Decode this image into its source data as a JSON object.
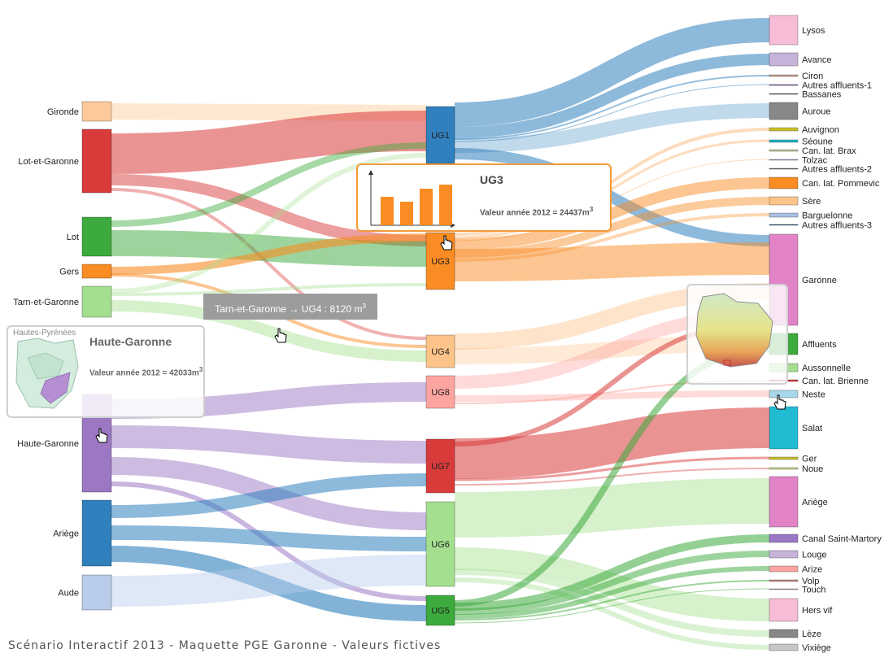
{
  "footer": "Scénario Interactif 2013 - Maquette PGE Garonne - Valeurs fictives",
  "sources": [
    {
      "name": "Gironde",
      "color": "#fdc99a"
    },
    {
      "name": "Lot-et-Garonne",
      "color": "#d93b3b"
    },
    {
      "name": "Lot",
      "color": "#3caa3c"
    },
    {
      "name": "Gers",
      "color": "#f98c23"
    },
    {
      "name": "Tarn-et-Garonne",
      "color": "#a3df8f"
    },
    {
      "name": "Haute-Garonne",
      "color": "#9c78c4"
    },
    {
      "name": "Ariège",
      "color": "#2f80bd"
    },
    {
      "name": "Aude",
      "color": "#b9ccec"
    }
  ],
  "ugs": [
    {
      "name": "UG1",
      "color": "#2f80bd"
    },
    {
      "name": "UG3",
      "color": "#f98c23"
    },
    {
      "name": "UG4",
      "color": "#fdc48a"
    },
    {
      "name": "UG8",
      "color": "#fca5a0"
    },
    {
      "name": "UG7",
      "color": "#d93b3b"
    },
    {
      "name": "UG6",
      "color": "#a3df8f"
    },
    {
      "name": "UG5",
      "color": "#3caa3c"
    }
  ],
  "rivers": [
    {
      "name": "Lysos",
      "color": "#f7bcd6"
    },
    {
      "name": "Avance",
      "color": "#c7b3d9"
    },
    {
      "name": "Ciron",
      "color": "#d5a08f"
    },
    {
      "name": "Autres affluents-1",
      "color": "#7b4d9e"
    },
    {
      "name": "Bassanes",
      "color": "#6b5a52"
    },
    {
      "name": "Auroue",
      "color": "#878787"
    },
    {
      "name": "Auvignon",
      "color": "#c8c228"
    },
    {
      "name": "Séoune",
      "color": "#20b7c8"
    },
    {
      "name": "Can. lat. Brax",
      "color": "#c9c79a"
    },
    {
      "name": "Tolzac",
      "color": "#9db3d6"
    },
    {
      "name": "Autres affluents-2",
      "color": "#6f6f6f"
    },
    {
      "name": "Can. lat. Pommevic",
      "color": "#f98c23"
    },
    {
      "name": "Sère",
      "color": "#fdc48a"
    },
    {
      "name": "Barguelonne",
      "color": "#a9bfe2"
    },
    {
      "name": "Autres affluents-3",
      "color": "#2c5f8f"
    },
    {
      "name": "Garonne",
      "color": "#e283c8"
    },
    {
      "name": "Affluents",
      "color": "#3caa3c"
    },
    {
      "name": "Aussonnelle",
      "color": "#a3df8f"
    },
    {
      "name": "Can. lat. Brienne",
      "color": "#d93b3b"
    },
    {
      "name": "Neste",
      "color": "#a6d8ea"
    },
    {
      "name": "Salat",
      "color": "#21bcd2"
    },
    {
      "name": "Ger",
      "color": "#c8c228"
    },
    {
      "name": "Noue",
      "color": "#c9d88a"
    },
    {
      "name": "Ariège",
      "color": "#e283c8"
    },
    {
      "name": "Canal Saint-Martory",
      "color": "#9c78c4"
    },
    {
      "name": "Louge",
      "color": "#c7b3d9"
    },
    {
      "name": "Arize",
      "color": "#fca5a0"
    },
    {
      "name": "Volp",
      "color": "#c58b7d"
    },
    {
      "name": "Touch",
      "color": "#d9a8c4"
    },
    {
      "name": "Hers vif",
      "color": "#f7bcd6"
    },
    {
      "name": "Lèze",
      "color": "#878787"
    },
    {
      "name": "Vixiège",
      "color": "#c7c7c7"
    }
  ],
  "tooltip_flow": {
    "label": "Tarn-et-Garonne → UG4 : 8120 m",
    "exp": "3"
  },
  "tooltip_ug3": {
    "title": "UG3",
    "value": "Valeur année 2012 = 24437m",
    "exp": "3",
    "bars": [
      0.7,
      0.58,
      0.9,
      1.0
    ]
  },
  "tooltip_hg": {
    "title": "Haute-Garonne",
    "value": "Valeur année 2012 = 42033m",
    "exp": "3",
    "map_label": "Hautes-Pyrénées"
  }
}
